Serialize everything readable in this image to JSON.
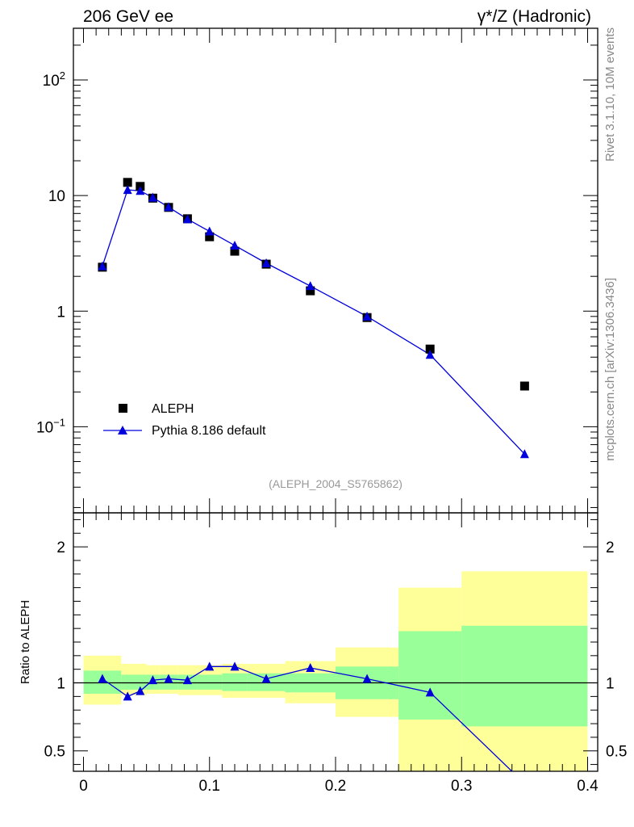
{
  "header": {
    "left": "206 GeV ee",
    "right": "γ*/Z (Hadronic)"
  },
  "side": {
    "rivet": "Rivet 3.1.10,  10M events",
    "site": "mcplots.cern.ch [arXiv:1306.3436]"
  },
  "watermark": "(ALEPH_2004_S5765862)",
  "colors": {
    "data": "#000000",
    "mc": "#0000dd",
    "band_inner": "#99ff99",
    "band_outer": "#ffff99"
  },
  "chart_data": [
    {
      "type": "scatter",
      "yscale": "log",
      "xlim": [
        -0.008,
        0.408
      ],
      "ylim": [
        0.018,
        280
      ],
      "yticks": [
        {
          "value": 0.1,
          "base": "10",
          "exp": "−1"
        },
        {
          "value": 1,
          "label": "1"
        },
        {
          "value": 10,
          "label": "10"
        },
        {
          "value": 100,
          "base": "10",
          "exp": "2"
        }
      ],
      "legend_position": "lower-left",
      "series": [
        {
          "name": "ALEPH",
          "marker": "square",
          "x": [
            0.015,
            0.035,
            0.045,
            0.055,
            0.0675,
            0.0825,
            0.1,
            0.12,
            0.145,
            0.18,
            0.225,
            0.275,
            0.35
          ],
          "y": [
            2.4,
            13.0,
            12.0,
            9.5,
            7.9,
            6.3,
            4.4,
            3.3,
            2.55,
            1.5,
            0.88,
            0.47,
            0.225
          ]
        },
        {
          "name": "Pythia 8.186 default",
          "marker": "triangle",
          "x": [
            0.015,
            0.035,
            0.045,
            0.055,
            0.0675,
            0.0825,
            0.1,
            0.12,
            0.145,
            0.18,
            0.225,
            0.275,
            0.35
          ],
          "y": [
            2.45,
            11.2,
            11.0,
            9.6,
            7.95,
            6.25,
            4.9,
            3.7,
            2.6,
            1.65,
            0.9,
            0.42,
            0.058
          ]
        }
      ]
    },
    {
      "type": "line",
      "ylabel": "Ratio to ALEPH",
      "xlim": [
        -0.008,
        0.408
      ],
      "ylim": [
        0.35,
        2.25
      ],
      "yticks": [
        "0.5",
        "1",
        "2"
      ],
      "xticks": [
        "0",
        "0.1",
        "0.2",
        "0.3",
        "0.4"
      ],
      "reference_line": 1,
      "bands": {
        "edges": [
          0.0,
          0.03,
          0.04,
          0.05,
          0.06,
          0.075,
          0.09,
          0.11,
          0.13,
          0.16,
          0.2,
          0.25,
          0.3,
          0.4
        ],
        "inner_low": [
          0.92,
          0.95,
          0.95,
          0.95,
          0.95,
          0.95,
          0.95,
          0.94,
          0.94,
          0.93,
          0.88,
          0.73,
          0.68
        ],
        "inner_high": [
          1.09,
          1.06,
          1.06,
          1.06,
          1.06,
          1.06,
          1.06,
          1.07,
          1.07,
          1.07,
          1.12,
          1.38,
          1.42
        ],
        "outer_low": [
          0.84,
          0.91,
          0.91,
          0.92,
          0.92,
          0.91,
          0.91,
          0.89,
          0.89,
          0.85,
          0.75,
          0.35,
          0.35
        ],
        "outer_high": [
          1.2,
          1.14,
          1.14,
          1.13,
          1.13,
          1.13,
          1.13,
          1.14,
          1.14,
          1.16,
          1.26,
          1.7,
          1.82
        ]
      },
      "series": [
        {
          "name": "Pythia 8.186 default",
          "x": [
            0.015,
            0.035,
            0.045,
            0.055,
            0.0675,
            0.0825,
            0.1,
            0.12,
            0.145,
            0.18,
            0.225,
            0.275,
            0.35
          ],
          "y": [
            1.03,
            0.9,
            0.94,
            1.02,
            1.03,
            1.02,
            1.12,
            1.12,
            1.03,
            1.11,
            1.03,
            0.93,
            0.26
          ]
        }
      ]
    }
  ]
}
